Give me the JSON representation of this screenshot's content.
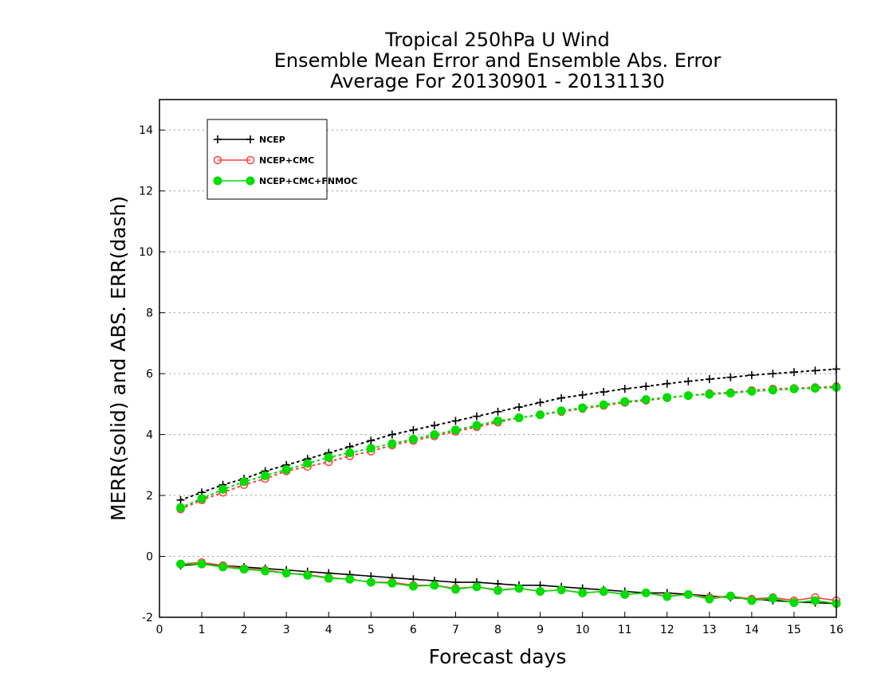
{
  "chart_data": {
    "type": "line",
    "title": [
      "Tropical 250hPa U Wind",
      "Ensemble Mean Error and Ensemble Abs. Error",
      "Average For 20130901 - 20131130"
    ],
    "xlabel": "Forecast days",
    "ylabel": "MERR(solid) and ABS. ERR(dash)",
    "xlim": [
      0,
      16
    ],
    "ylim": [
      -2,
      15
    ],
    "xticks": [
      0,
      1,
      2,
      3,
      4,
      5,
      6,
      7,
      8,
      9,
      10,
      11,
      12,
      13,
      14,
      15,
      16
    ],
    "yticks": [
      -2,
      0,
      2,
      4,
      6,
      8,
      10,
      12,
      14
    ],
    "ytick_labels": [
      "-2",
      "0",
      "2",
      "4",
      "6",
      "8",
      "10",
      "12",
      "14"
    ],
    "grid": "horizontal dotted",
    "legend_position": "top-left",
    "x": [
      0.5,
      1,
      1.5,
      2,
      2.5,
      3,
      3.5,
      4,
      4.5,
      5,
      5.5,
      6,
      6.5,
      7,
      7.5,
      8,
      8.5,
      9,
      9.5,
      10,
      10.5,
      11,
      11.5,
      12,
      12.5,
      13,
      13.5,
      14,
      14.5,
      15,
      15.5,
      16
    ],
    "series": [
      {
        "name": "NCEP",
        "color": "#000000",
        "marker": "plus",
        "abs_err": [
          1.85,
          2.1,
          2.35,
          2.55,
          2.8,
          3.0,
          3.2,
          3.4,
          3.6,
          3.8,
          4.0,
          4.15,
          4.3,
          4.45,
          4.6,
          4.75,
          4.9,
          5.05,
          5.2,
          5.3,
          5.4,
          5.5,
          5.58,
          5.67,
          5.75,
          5.82,
          5.88,
          5.95,
          6.0,
          6.05,
          6.1,
          6.15
        ],
        "mean_err": [
          -0.3,
          -0.25,
          -0.3,
          -0.35,
          -0.4,
          -0.45,
          -0.5,
          -0.55,
          -0.6,
          -0.65,
          -0.7,
          -0.75,
          -0.8,
          -0.85,
          -0.85,
          -0.9,
          -0.95,
          -0.95,
          -1.0,
          -1.05,
          -1.1,
          -1.15,
          -1.2,
          -1.2,
          -1.25,
          -1.3,
          -1.35,
          -1.4,
          -1.45,
          -1.5,
          -1.52,
          -1.55
        ]
      },
      {
        "name": "NCEP+CMC",
        "color": "#ff4040",
        "marker": "circle-open",
        "abs_err": [
          1.55,
          1.85,
          2.1,
          2.35,
          2.55,
          2.8,
          2.95,
          3.1,
          3.3,
          3.45,
          3.65,
          3.8,
          3.95,
          4.1,
          4.25,
          4.4,
          4.55,
          4.65,
          4.75,
          4.85,
          4.95,
          5.05,
          5.12,
          5.2,
          5.28,
          5.35,
          5.38,
          5.45,
          5.5,
          5.52,
          5.55,
          5.58
        ],
        "mean_err": [
          -0.25,
          -0.2,
          -0.3,
          -0.4,
          -0.45,
          -0.55,
          -0.6,
          -0.7,
          -0.75,
          -0.85,
          -0.85,
          -0.95,
          -0.95,
          -1.05,
          -1.0,
          -1.1,
          -1.05,
          -1.15,
          -1.1,
          -1.2,
          -1.15,
          -1.25,
          -1.2,
          -1.3,
          -1.25,
          -1.35,
          -1.3,
          -1.4,
          -1.35,
          -1.45,
          -1.35,
          -1.45
        ]
      },
      {
        "name": "NCEP+CMC+FNMOC",
        "color": "#00dd00",
        "marker": "circle-filled",
        "abs_err": [
          1.6,
          1.9,
          2.2,
          2.45,
          2.65,
          2.85,
          3.05,
          3.25,
          3.4,
          3.55,
          3.7,
          3.85,
          4.0,
          4.15,
          4.3,
          4.45,
          4.55,
          4.65,
          4.78,
          4.88,
          4.98,
          5.08,
          5.15,
          5.22,
          5.28,
          5.32,
          5.36,
          5.42,
          5.46,
          5.5,
          5.52,
          5.55
        ],
        "mean_err": [
          -0.25,
          -0.25,
          -0.35,
          -0.42,
          -0.48,
          -0.55,
          -0.62,
          -0.72,
          -0.75,
          -0.85,
          -0.88,
          -0.98,
          -0.95,
          -1.08,
          -1.0,
          -1.12,
          -1.05,
          -1.15,
          -1.1,
          -1.2,
          -1.15,
          -1.25,
          -1.2,
          -1.32,
          -1.25,
          -1.4,
          -1.3,
          -1.45,
          -1.38,
          -1.52,
          -1.45,
          -1.55
        ]
      }
    ]
  }
}
